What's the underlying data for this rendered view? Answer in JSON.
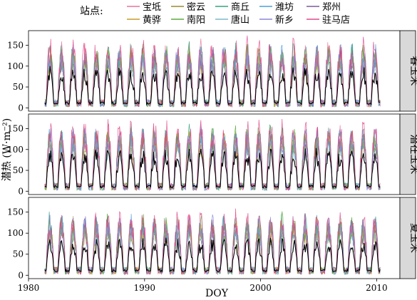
{
  "legend": {
    "title": "站点:",
    "entries": [
      {
        "name": "宝坻",
        "color": "#e8739a"
      },
      {
        "name": "密云",
        "color": "#9a8a2e"
      },
      {
        "name": "商丘",
        "color": "#35a37a"
      },
      {
        "name": "潍坊",
        "color": "#4a9fd8"
      },
      {
        "name": "郑州",
        "color": "#7a5a9a"
      },
      {
        "name": "黄骅",
        "color": "#c79a2a"
      },
      {
        "name": "南阳",
        "color": "#5bab3e"
      },
      {
        "name": "唐山",
        "color": "#7fb7c9"
      },
      {
        "name": "新乡",
        "color": "#8a86d6"
      },
      {
        "name": "驻马店",
        "color": "#e0488a"
      }
    ]
  },
  "chart_data": {
    "type": "line",
    "xlabel": "DOY",
    "ylabel": "潜热 (W·m⁻²)",
    "xlim": [
      1980,
      2012
    ],
    "x_ticks": [
      1980,
      1990,
      2000,
      2010
    ],
    "ylim": [
      -8,
      185
    ],
    "y_ticks": [
      0,
      50,
      100,
      150
    ],
    "grid": false,
    "legend_position": "top",
    "year_range": [
      1981,
      2009
    ],
    "series_names": [
      "宝坻",
      "密云",
      "商丘",
      "潍坊",
      "郑州",
      "黄骅",
      "南阳",
      "唐山",
      "新乡",
      "驻马店"
    ],
    "panels": [
      {
        "strip": "春玉米",
        "summer_peak": [
          150,
          160
        ],
        "summer_mean": 80,
        "winter_level": [
          2,
          20
        ],
        "series_peaks": {
          "宝坻": 150,
          "密云": 130,
          "商丘": 145,
          "潍坊": 140,
          "郑州": 135,
          "黄骅": 138,
          "南阳": 142,
          "唐山": 128,
          "新乡": 140,
          "驻马店": 165
        }
      },
      {
        "strip": "潜在玉米",
        "summer_peak": [
          150,
          165
        ],
        "summer_mean": 85,
        "winter_level": [
          2,
          20
        ],
        "series_peaks": {
          "宝坻": 155,
          "密云": 132,
          "商丘": 148,
          "潍坊": 142,
          "郑州": 138,
          "黄骅": 140,
          "南阳": 145,
          "唐山": 130,
          "新乡": 143,
          "驻马店": 170
        }
      },
      {
        "strip": "夏玉米",
        "summer_peak": [
          130,
          150
        ],
        "summer_mean": 70,
        "winter_level": [
          2,
          20
        ],
        "series_peaks": {
          "宝坻": 135,
          "密云": 120,
          "商丘": 138,
          "潍坊": 130,
          "郑州": 128,
          "黄骅": 125,
          "南阳": 135,
          "唐山": 118,
          "新乡": 132,
          "驻马店": 150
        }
      }
    ]
  }
}
